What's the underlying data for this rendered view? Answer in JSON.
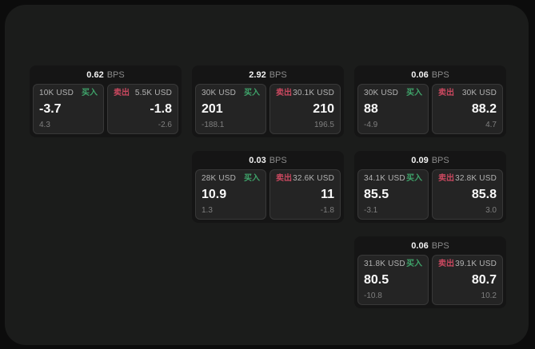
{
  "labels": {
    "buy": "买入",
    "sell": "卖出",
    "bps_unit": "BPS"
  },
  "colors": {
    "buy_green": "#3fa36a",
    "sell_red": "#c9485f",
    "panel_bg": "#1b1c1b",
    "card_bg": "#151515",
    "tile_bg": "#242424"
  },
  "cards": [
    {
      "col": 1,
      "row": 1,
      "bps_value": "0.62",
      "buy": {
        "amount": "10K USD",
        "price": "-3.7",
        "delta": "4.3"
      },
      "sell": {
        "amount": "5.5K USD",
        "price": "-1.8",
        "delta": "-2.6"
      }
    },
    {
      "col": 2,
      "row": 1,
      "bps_value": "2.92",
      "buy": {
        "amount": "30K USD",
        "price": "201",
        "delta": "-188.1"
      },
      "sell": {
        "amount": "30.1K USD",
        "price": "210",
        "delta": "196.5"
      }
    },
    {
      "col": 3,
      "row": 1,
      "bps_value": "0.06",
      "buy": {
        "amount": "30K USD",
        "price": "88",
        "delta": "-4.9"
      },
      "sell": {
        "amount": "30K USD",
        "price": "88.2",
        "delta": "4.7"
      }
    },
    {
      "col": 2,
      "row": 2,
      "bps_value": "0.03",
      "buy": {
        "amount": "28K USD",
        "price": "10.9",
        "delta": "1.3"
      },
      "sell": {
        "amount": "32.6K USD",
        "price": "11",
        "delta": "-1.8"
      }
    },
    {
      "col": 3,
      "row": 2,
      "bps_value": "0.09",
      "buy": {
        "amount": "34.1K USD",
        "price": "85.5",
        "delta": "-3.1"
      },
      "sell": {
        "amount": "32.8K USD",
        "price": "85.8",
        "delta": "3.0"
      }
    },
    {
      "col": 3,
      "row": 3,
      "bps_value": "0.06",
      "buy": {
        "amount": "31.8K USD",
        "price": "80.5",
        "delta": "-10.8"
      },
      "sell": {
        "amount": "39.1K USD",
        "price": "80.7",
        "delta": "10.2"
      }
    }
  ]
}
